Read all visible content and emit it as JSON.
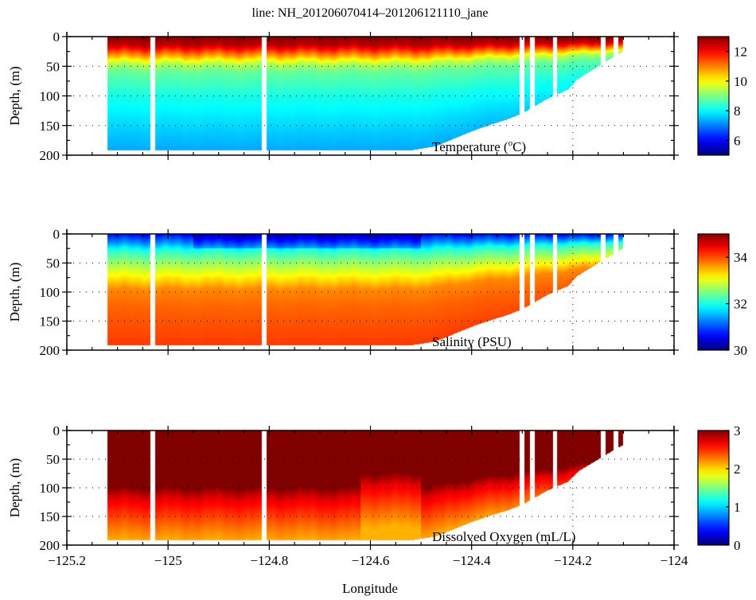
{
  "chart_data": {
    "type": "heatmap",
    "title": "line: NH_201206070414–201206121110_jane",
    "xlabel": "Longitude",
    "xlim": [
      -125.2,
      -124
    ],
    "x_ticks": [
      -125.2,
      -125,
      -124.8,
      -124.6,
      -124.4,
      -124.2,
      -124
    ],
    "x_tick_labels": [
      "−125.2",
      "−125",
      "−124.8",
      "−124.6",
      "−124.4",
      "−124.2",
      "−124"
    ],
    "grid": "dotted",
    "colormap": "jet",
    "bottom_profile": {
      "lon": [
        -125.12,
        -124.52,
        -124.47,
        -124.4,
        -124.36,
        -124.33,
        -124.3,
        -124.25,
        -124.21,
        -124.19,
        -124.13,
        -124.1
      ],
      "max_depth": [
        192,
        192,
        185,
        160,
        148,
        140,
        130,
        105,
        90,
        72,
        40,
        25
      ]
    },
    "gaps_lon": [
      -125.03,
      -124.81,
      -124.3,
      -124.28,
      -124.235,
      -124.14,
      -124.115
    ],
    "panels": [
      {
        "label": "Temperature (°C)",
        "label_prefix": "Temperature (",
        "label_degree": "o",
        "label_suffix": "C)",
        "ylabel": "Depth, (m)",
        "ylim": [
          0,
          200
        ],
        "y_ticks": [
          0,
          50,
          100,
          150,
          200
        ],
        "y_tick_labels": [
          "0",
          "50",
          "100",
          "150",
          "200"
        ],
        "clim": [
          5,
          13
        ],
        "cbar_ticks": [
          6,
          8,
          10,
          12
        ],
        "cbar_tick_labels": [
          "6",
          "8",
          "10",
          "12"
        ],
        "profile": {
          "depth": [
            0,
            15,
            30,
            45,
            60,
            100,
            150,
            195
          ],
          "value": [
            13,
            12.5,
            11,
            9.5,
            8.8,
            8.2,
            7.7,
            7.3
          ]
        }
      },
      {
        "label": "Salinity (PSU)",
        "ylabel": "Depth, (m)",
        "ylim": [
          0,
          200
        ],
        "y_ticks": [
          0,
          50,
          100,
          150,
          200
        ],
        "y_tick_labels": [
          "0",
          "50",
          "100",
          "150",
          "200"
        ],
        "clim": [
          30,
          35
        ],
        "cbar_ticks": [
          30,
          32,
          34
        ],
        "cbar_tick_labels": [
          "30",
          "32",
          "34"
        ],
        "profile": {
          "depth": [
            0,
            15,
            30,
            50,
            75,
            95,
            130,
            195
          ],
          "value": [
            30.6,
            31.3,
            32.1,
            32.6,
            33.2,
            33.7,
            33.9,
            34.1
          ]
        }
      },
      {
        "label": "Dissolved Oxygen (mL/L)",
        "ylabel": "Depth, (m)",
        "ylim": [
          0,
          200
        ],
        "y_ticks": [
          0,
          50,
          100,
          150,
          200
        ],
        "y_tick_labels": [
          "0",
          "50",
          "100",
          "150",
          "200"
        ],
        "clim": [
          0,
          3
        ],
        "cbar_ticks": [
          0,
          1,
          2,
          3
        ],
        "cbar_tick_labels": [
          "0",
          "1",
          "2",
          "3"
        ],
        "profile": {
          "depth": [
            0,
            100,
            120,
            150,
            175,
            195
          ],
          "value": [
            3.2,
            3.0,
            2.7,
            2.45,
            2.25,
            2.1
          ]
        }
      }
    ]
  }
}
